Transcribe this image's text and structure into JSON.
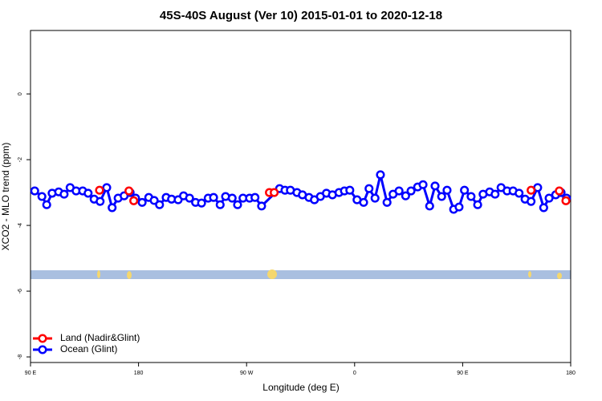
{
  "chart_data": {
    "type": "line",
    "title": "45S-40S August (Ver 10)   2015-01-01 to 2020-12-18",
    "xlabel": "Longitude (deg E)",
    "ylabel": "XCO2 - MLO trend (ppm)",
    "xlim": [
      90,
      540
    ],
    "ylim": [
      -8.17,
      1.93
    ],
    "xticks": [
      {
        "value": 90,
        "label": "90 E"
      },
      180,
      {
        "value": 270,
        "label": "90 W"
      },
      {
        "value": 360,
        "label": "0"
      },
      {
        "value": 450,
        "label": "90 E"
      },
      {
        "value": 540,
        "label": "180"
      }
    ],
    "yticks": [
      0,
      -2,
      -4,
      -6,
      -8
    ],
    "legend": "bottom-left",
    "series": [
      {
        "name": "Land (Nadir&Glint)",
        "color": "#ff0000",
        "lines": false,
        "x": [
          147.5,
          172,
          176,
          289,
          293,
          507,
          530.5,
          536
        ],
        "values": [
          -2.93,
          -2.95,
          -3.25,
          -3.0,
          -3.0,
          -2.93,
          -2.95,
          -3.25
        ]
      },
      {
        "name": "Ocean (Glint)",
        "color": "#0000ff",
        "lines": true,
        "x": [
          93.5,
          99.5,
          103.5,
          108,
          113.5,
          118,
          123,
          128,
          133.5,
          138,
          143,
          148,
          153.5,
          158,
          163,
          168,
          173,
          177.5,
          183,
          188.5,
          193,
          197.5,
          203,
          207.5,
          213,
          217.5,
          222.5,
          227.5,
          232.5,
          238,
          242.5,
          248,
          252.5,
          258,
          262.5,
          267,
          272.5,
          277,
          282.5,
          297.5,
          302,
          306.5,
          312,
          316.5,
          322,
          326.5,
          331.5,
          336.5,
          341.5,
          347,
          351.5,
          356,
          362,
          367.5,
          372,
          377,
          381.5,
          387,
          392,
          397,
          402.5,
          407,
          412.5,
          417,
          422.5,
          427,
          432.5,
          437,
          442.5,
          447,
          451.5,
          457,
          462.5,
          467,
          472.5,
          477,
          482,
          487,
          492,
          497,
          502,
          507,
          512.5,
          517.5,
          522,
          527.5,
          532,
          536.5
        ],
        "values": [
          -2.95,
          -3.12,
          -3.37,
          -3.02,
          -2.98,
          -3.05,
          -2.85,
          -2.95,
          -2.95,
          -3.02,
          -3.2,
          -3.27,
          -2.85,
          -3.46,
          -3.17,
          -3.1,
          -3.0,
          -3.17,
          -3.3,
          -3.15,
          -3.24,
          -3.37,
          -3.15,
          -3.2,
          -3.22,
          -3.1,
          -3.17,
          -3.3,
          -3.32,
          -3.17,
          -3.15,
          -3.37,
          -3.12,
          -3.17,
          -3.37,
          -3.17,
          -3.17,
          -3.15,
          -3.41,
          -2.88,
          -2.93,
          -2.93,
          -3.0,
          -3.07,
          -3.15,
          -3.22,
          -3.12,
          -3.02,
          -3.07,
          -3.0,
          -2.95,
          -2.93,
          -3.22,
          -3.3,
          -2.88,
          -3.17,
          -2.46,
          -3.3,
          -3.05,
          -2.95,
          -3.1,
          -2.95,
          -2.83,
          -2.76,
          -3.41,
          -2.8,
          -3.12,
          -2.93,
          -3.51,
          -3.44,
          -2.93,
          -3.12,
          -3.37,
          -3.05,
          -2.98,
          -3.05,
          -2.85,
          -2.95,
          -2.95,
          -3.02,
          -3.2,
          -3.27,
          -2.85,
          -3.46,
          -3.17,
          -3.07,
          -3.0,
          -3.17
        ]
      }
    ]
  }
}
